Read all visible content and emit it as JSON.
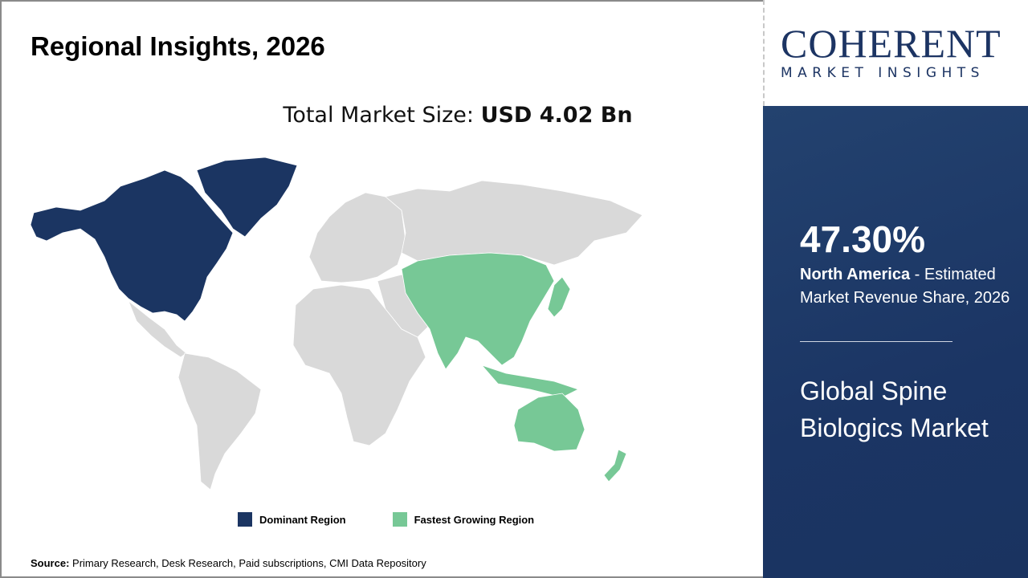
{
  "header": {
    "title": "Regional Insights, 2026"
  },
  "total": {
    "label": "Total Market Size: ",
    "value": "USD 4.02 Bn"
  },
  "logo": {
    "brand": "COHERENT",
    "tagline": "MARKET INSIGHTS"
  },
  "chart_data": {
    "type": "choropleth map",
    "regions": [
      {
        "region": "North America",
        "category": "Dominant Region"
      },
      {
        "region": "Asia Pacific",
        "category": "Fastest Growing Region"
      },
      {
        "region": "Rest of World",
        "category": "Other"
      }
    ],
    "legend": [
      {
        "label": "Dominant Region",
        "color": "#1b3562"
      },
      {
        "label": "Fastest Growing Region",
        "color": "#77c896"
      }
    ],
    "colors": {
      "other": "#d9d9d9"
    }
  },
  "panel": {
    "share": "47.30%",
    "region": "North America",
    "share_desc": " - Estimated Market Revenue Share, 2026",
    "market": "Global Spine Biologics Market"
  },
  "source": {
    "label": "Source:",
    "text": " Primary Research, Desk Research, Paid subscriptions, CMI Data Repository"
  }
}
